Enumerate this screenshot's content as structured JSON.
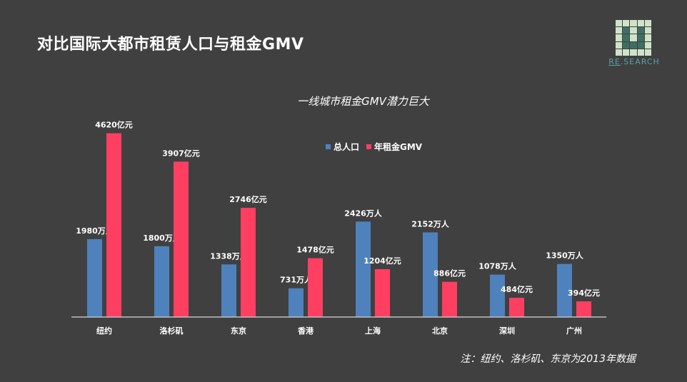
{
  "header": {
    "title": "对比国际大都市租赁人口与租金GMV",
    "logo_text_prefix": "RE",
    "logo_text_suffix": "SEARCH"
  },
  "footnote": "注：纽约、洛杉矶、东京为2013年数据",
  "colors": {
    "population": "#4f81bd",
    "gmv": "#ff3f62",
    "background": "#404040",
    "axis": "#bfbfbf"
  },
  "chart_data": {
    "type": "bar",
    "title": "一线城市租金GMV潜力巨大",
    "categories": [
      "纽约",
      "洛杉矶",
      "东京",
      "香港",
      "上海",
      "北京",
      "深圳",
      "广州"
    ],
    "series": [
      {
        "name": "总人口",
        "values": [
          1980,
          1800,
          1338,
          731,
          2426,
          2152,
          1078,
          1350
        ],
        "labels": [
          "1980万人",
          "1800万人",
          "1338万人",
          "731万人",
          "2426万人",
          "2152万人",
          "1078万人",
          "1350万人"
        ],
        "unit": "万人"
      },
      {
        "name": "年租金GMV",
        "values": [
          4620,
          3907,
          2746,
          1478,
          1204,
          886,
          484,
          394
        ],
        "labels": [
          "4620亿元",
          "3907亿元",
          "2746亿元",
          "1478亿元",
          "1204亿元",
          "886亿元",
          "484亿元",
          "394亿元"
        ],
        "unit": "亿元"
      }
    ],
    "legend_position": "top-center",
    "xlabel": "",
    "ylabel": "",
    "grid": false
  }
}
